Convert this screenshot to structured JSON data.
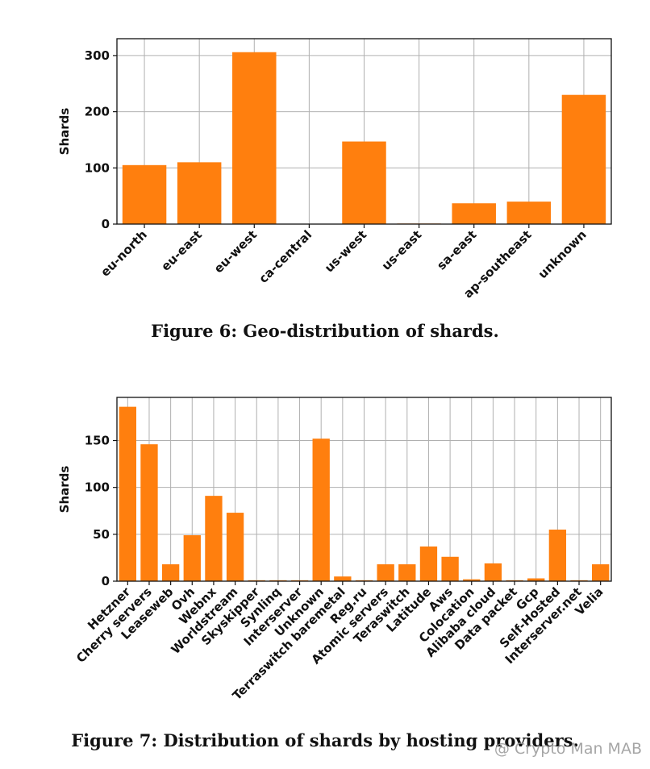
{
  "chart_data": [
    {
      "type": "bar",
      "title": "",
      "xlabel": "",
      "ylabel": "Shards",
      "ylim": [
        0,
        330
      ],
      "yticks": [
        0,
        100,
        200,
        300
      ],
      "grid": true,
      "color": "#ff7f0e",
      "categories": [
        "eu-north",
        "eu-east",
        "eu-west",
        "ca-central",
        "us-west",
        "us-east",
        "sa-east",
        "ap-southeast",
        "unknown"
      ],
      "values": [
        105,
        110,
        306,
        0,
        147,
        1,
        37,
        40,
        230
      ]
    },
    {
      "type": "bar",
      "title": "",
      "xlabel": "",
      "ylabel": "Shards",
      "ylim": [
        0,
        196
      ],
      "yticks": [
        0,
        50,
        100,
        150
      ],
      "grid": true,
      "color": "#ff7f0e",
      "categories": [
        "Hetzner",
        "Cherry servers",
        "Leaseweb",
        "Ovh",
        "Webnx",
        "Worldstream",
        "Skyskipper",
        "Synlinq",
        "Interserver",
        "Unknown",
        "Terraswitch baremetal",
        "Reg.ru",
        "Atomic servers",
        "Teraswitch",
        "Latitude",
        "Aws",
        "Colocation",
        "Alibaba cloud",
        "Data packet",
        "Gcp",
        "Self-Hosted",
        "Interserver.net",
        "Velia"
      ],
      "values": [
        186,
        146,
        18,
        49,
        91,
        73,
        1,
        1,
        1,
        152,
        5,
        1,
        18,
        18,
        37,
        26,
        2,
        19,
        1,
        3,
        55,
        1,
        18
      ]
    }
  ],
  "captions": {
    "fig6": "Figure 6: Geo-distribution of shards.",
    "fig7": "Figure 7: Distribution of shards by hosting providers."
  },
  "watermark": "@ Crypto Man MAB"
}
